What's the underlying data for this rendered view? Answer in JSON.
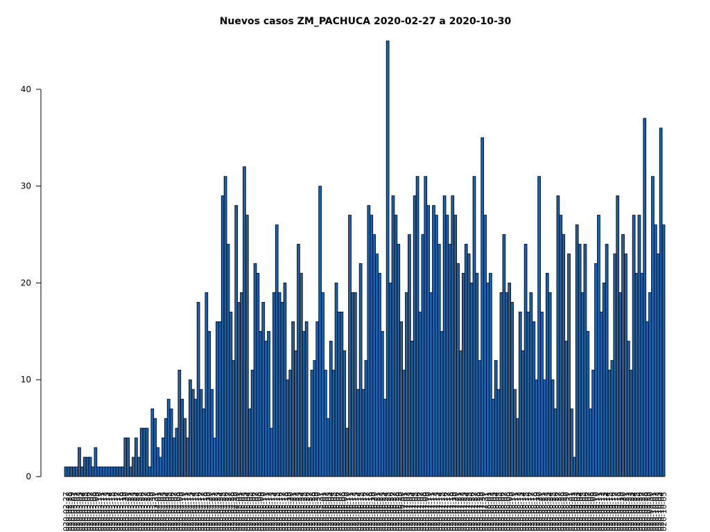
{
  "colors": {
    "bar": "#1f5fa6",
    "bar_edge": "#000000",
    "axis": "#000000"
  },
  "chart_data": {
    "type": "bar",
    "title": "Nuevos casos ZM_PACHUCA 2020-02-27 a 2020-10-30",
    "xlabel": "",
    "ylabel": "",
    "ylim": [
      0,
      45
    ],
    "yticks": [
      0,
      10,
      20,
      30,
      40
    ],
    "grid": false,
    "legend": "none",
    "start_date": "2020-02-27",
    "values": [
      1,
      1,
      1,
      1,
      1,
      3,
      1,
      2,
      2,
      2,
      1,
      3,
      1,
      1,
      1,
      1,
      1,
      1,
      1,
      1,
      1,
      1,
      4,
      4,
      1,
      2,
      4,
      2,
      5,
      5,
      5,
      1,
      7,
      6,
      3,
      2,
      4,
      6,
      8,
      7,
      4,
      5,
      11,
      8,
      6,
      4,
      10,
      9,
      8,
      18,
      9,
      7,
      19,
      15,
      9,
      4,
      16,
      16,
      29,
      31,
      24,
      17,
      12,
      28,
      18,
      19,
      32,
      27,
      7,
      11,
      22,
      21,
      15,
      18,
      14,
      15,
      5,
      19,
      26,
      19,
      18,
      20,
      10,
      11,
      16,
      13,
      24,
      21,
      15,
      16,
      3,
      11,
      12,
      16,
      30,
      19,
      11,
      6,
      14,
      11,
      20,
      17,
      17,
      13,
      5,
      27,
      19,
      19,
      9,
      22,
      9,
      12,
      28,
      27,
      25,
      23,
      21,
      15,
      8,
      45,
      20,
      29,
      27,
      24,
      16,
      11,
      19,
      25,
      14,
      29,
      31,
      17,
      25,
      31,
      28,
      19,
      28,
      27,
      24,
      15,
      29,
      27,
      24,
      29,
      27,
      22,
      13,
      21,
      24,
      23,
      20,
      31,
      21,
      12,
      35,
      27,
      20,
      21,
      8,
      12,
      9,
      19,
      25,
      19,
      20,
      18,
      9,
      6,
      17,
      13,
      24,
      17,
      19,
      16,
      10,
      31,
      17,
      10,
      21,
      19,
      10,
      7,
      29,
      27,
      25,
      14,
      23,
      7,
      2,
      26,
      24,
      19,
      24,
      15,
      7,
      11,
      22,
      27,
      17,
      20,
      24,
      11,
      12,
      23,
      29,
      19,
      25,
      23,
      14,
      11,
      27,
      21,
      27,
      21,
      37,
      16,
      19,
      31,
      26,
      23,
      36,
      26
    ]
  }
}
